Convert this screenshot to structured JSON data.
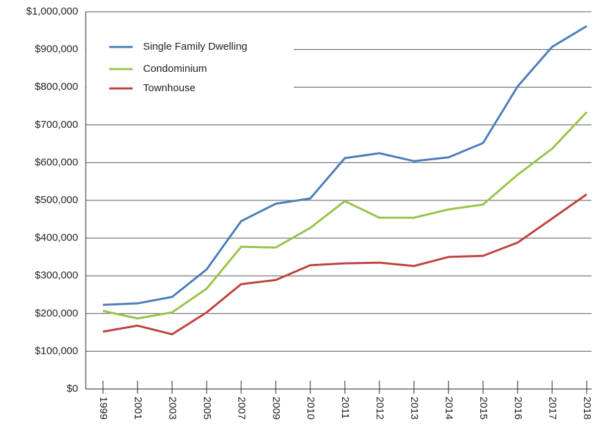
{
  "chart_data": {
    "type": "line",
    "categories": [
      "1999",
      "2001",
      "2003",
      "2005",
      "2007",
      "2009",
      "2010",
      "2011",
      "2012",
      "2013",
      "2014",
      "2015",
      "2016",
      "2017",
      "2018"
    ],
    "series": [
      {
        "name": "Single Family Dwelling",
        "color": "#4a7ebb",
        "values": [
          223000,
          227000,
          244000,
          317000,
          445000,
          491000,
          505000,
          612000,
          625000,
          604000,
          614000,
          652000,
          802000,
          907000,
          962000
        ]
      },
      {
        "name": "Condominium",
        "color": "#98c34c",
        "values": [
          207000,
          187000,
          203000,
          266000,
          377000,
          375000,
          427000,
          498000,
          454000,
          454000,
          476000,
          489000,
          568000,
          637000,
          734000
        ]
      },
      {
        "name": "Townhouse",
        "color": "#c0413f",
        "values": [
          152000,
          168000,
          145000,
          203000,
          278000,
          289000,
          328000,
          333000,
          335000,
          326000,
          350000,
          353000,
          388000,
          452000,
          516000
        ]
      }
    ],
    "ylim": [
      0,
      1000000
    ],
    "yticks": [
      {
        "value": 0,
        "label": "$0"
      },
      {
        "value": 100000,
        "label": "$100,000"
      },
      {
        "value": 200000,
        "label": "$200,000"
      },
      {
        "value": 300000,
        "label": "$300,000"
      },
      {
        "value": 400000,
        "label": "$400,000"
      },
      {
        "value": 500000,
        "label": "$500,000"
      },
      {
        "value": 600000,
        "label": "$600,000"
      },
      {
        "value": 700000,
        "label": "$700,000"
      },
      {
        "value": 800000,
        "label": "$800,000"
      },
      {
        "value": 900000,
        "label": "$900,000"
      },
      {
        "value": 1000000,
        "label": "$1,000,000"
      }
    ],
    "grid": true,
    "legend": "top-left"
  }
}
